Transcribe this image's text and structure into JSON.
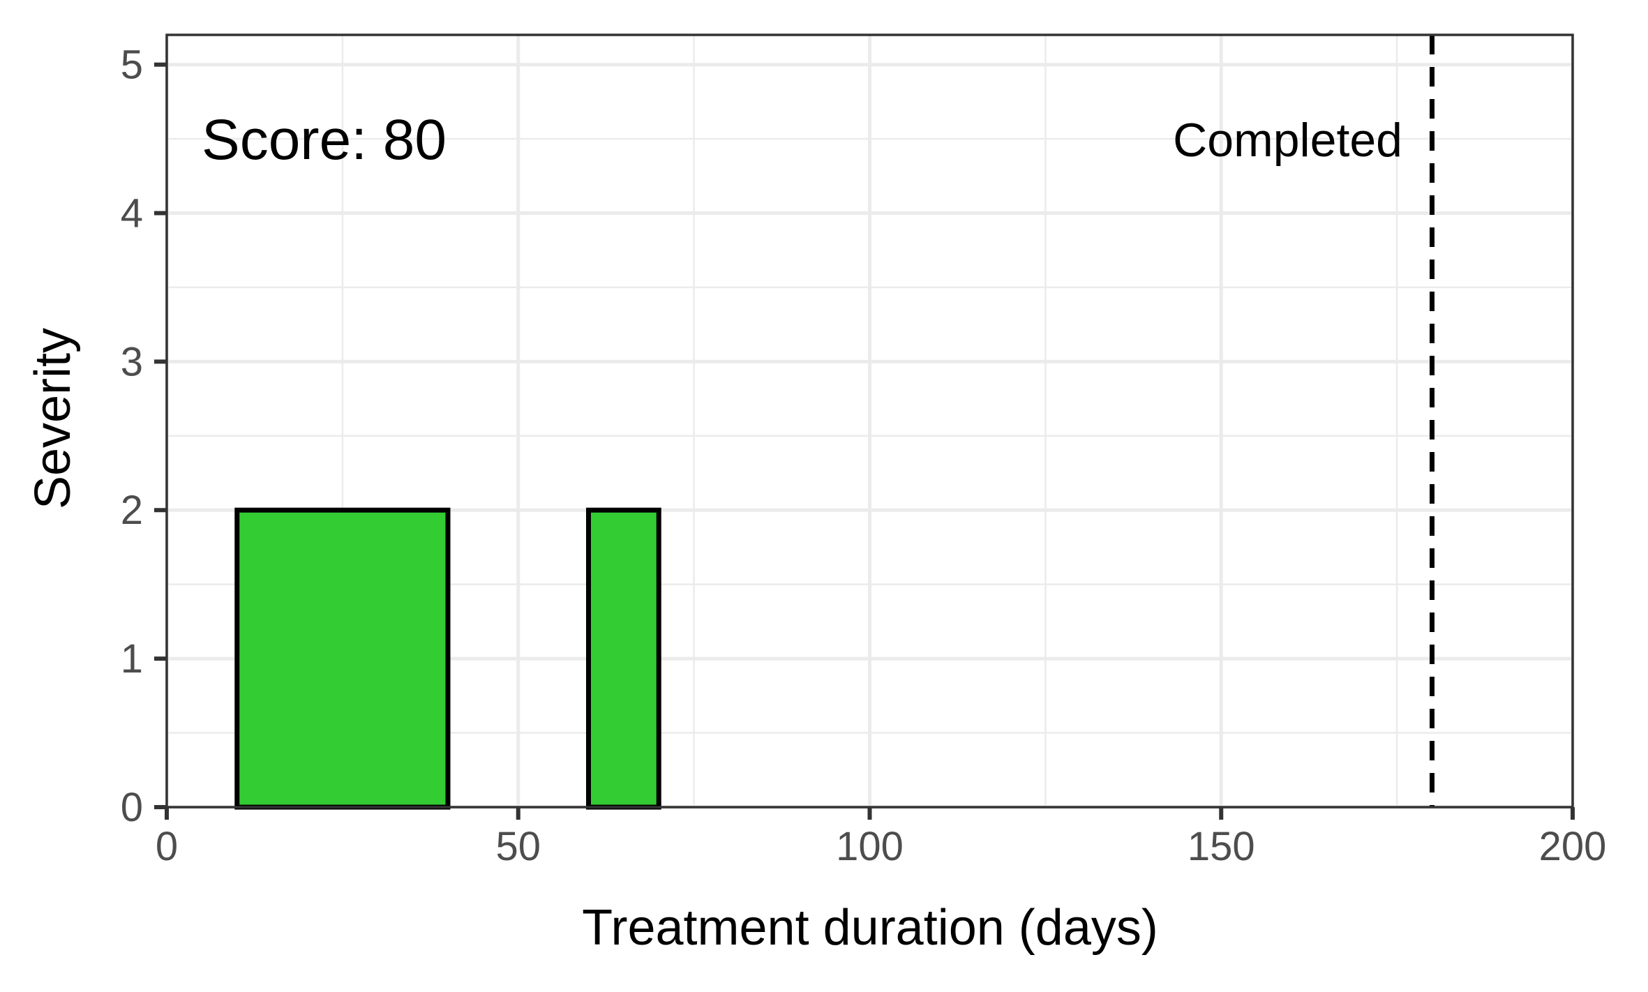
{
  "chart_data": {
    "type": "bar",
    "title": "",
    "xlabel": "Treatment duration (days)",
    "ylabel": "Severity",
    "xlim": [
      0,
      200
    ],
    "ylim": [
      0,
      5.2
    ],
    "x_ticks": [
      0,
      50,
      100,
      150,
      200
    ],
    "y_ticks": [
      0,
      1,
      2,
      3,
      4,
      5
    ],
    "grid": true,
    "bars": [
      {
        "start": 10,
        "end": 40,
        "value": 2
      },
      {
        "start": 60,
        "end": 70,
        "value": 2
      }
    ],
    "bar_color": "#33cc33",
    "bar_outline": "#000000",
    "reference_line": {
      "x": 180,
      "style": "dashed",
      "label": "Completed"
    },
    "annotation": {
      "text": "Score: 80"
    }
  }
}
